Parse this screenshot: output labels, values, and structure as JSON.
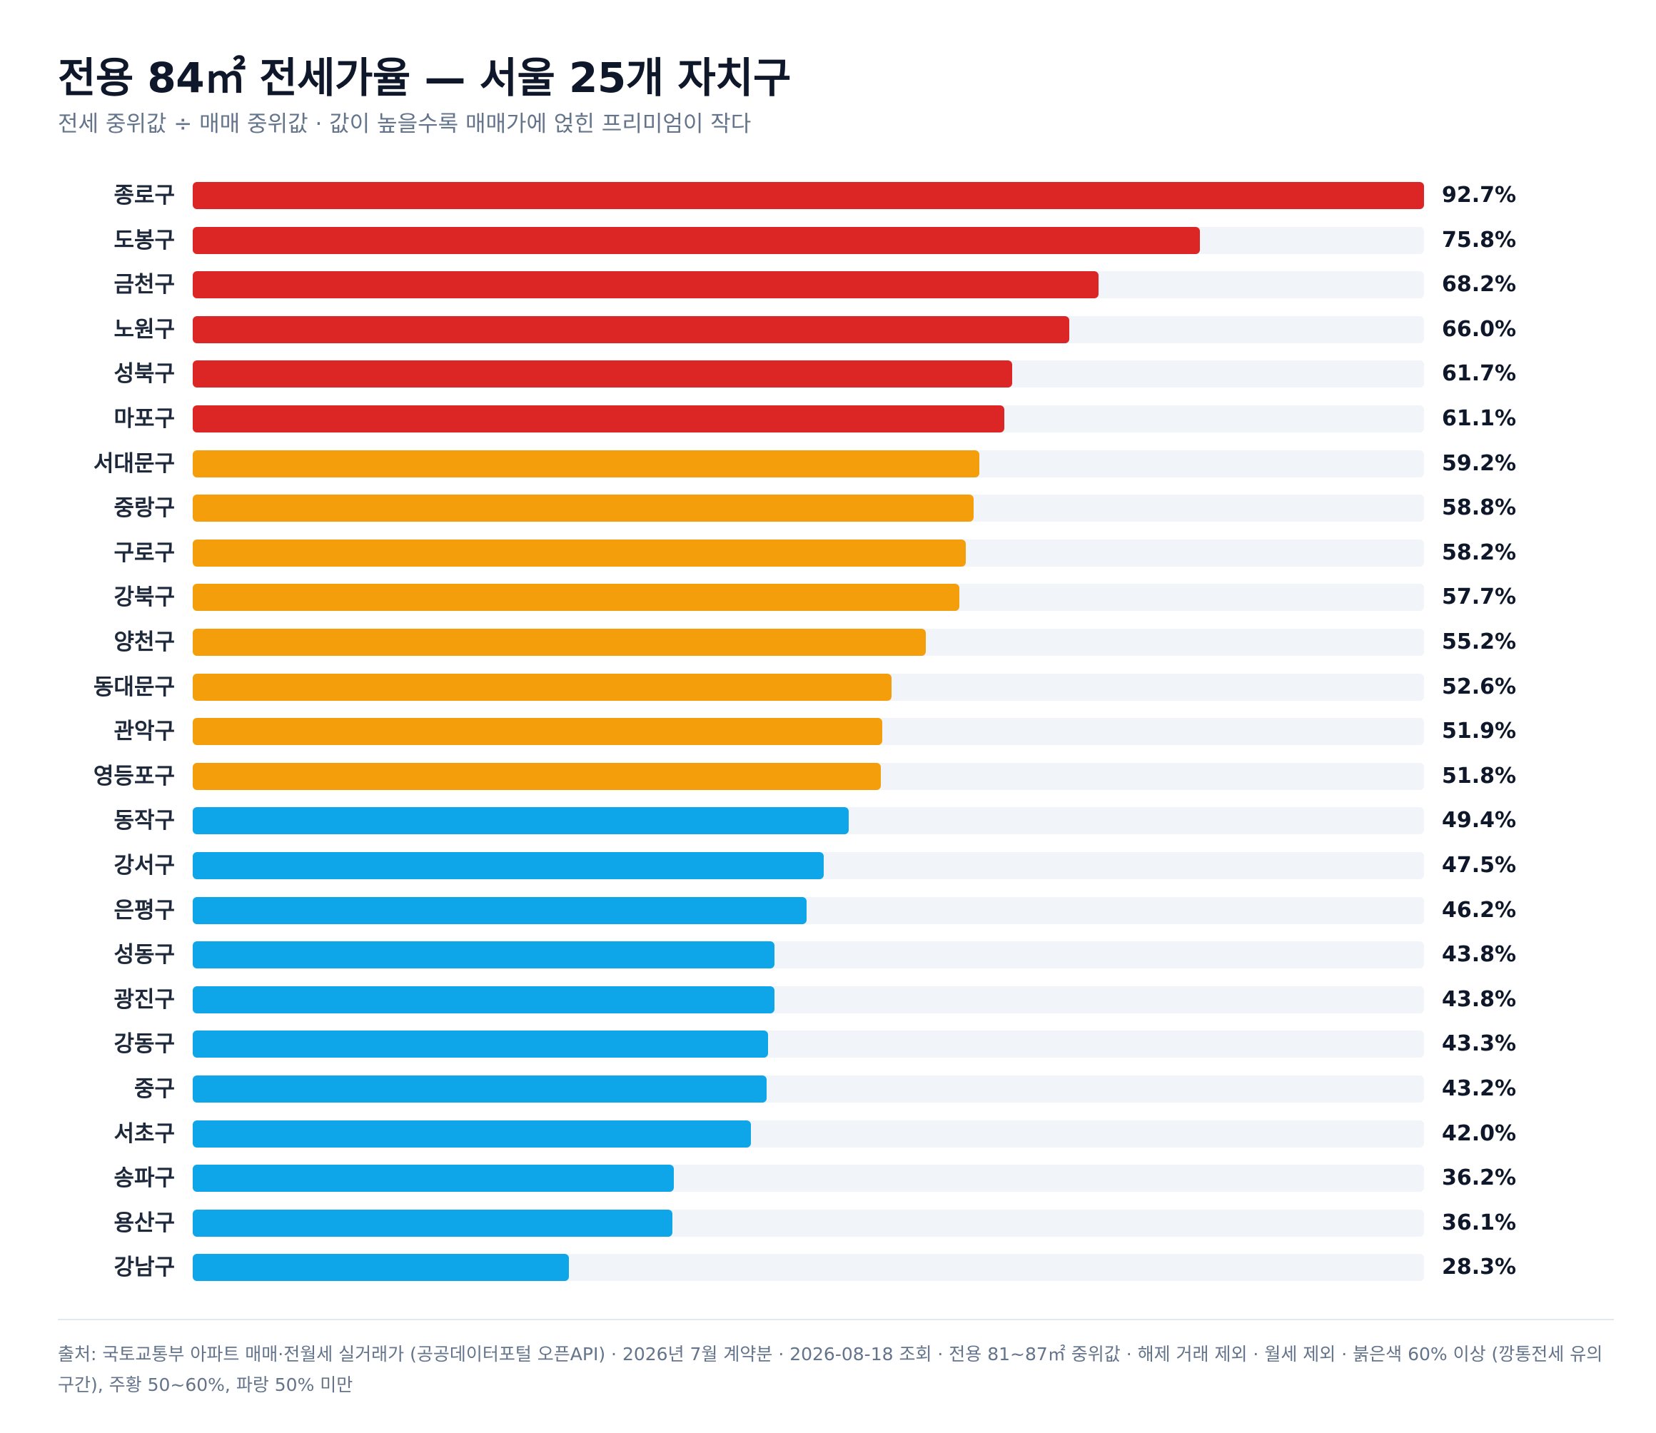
{
  "header": {
    "title": "전용 84㎡ 전세가율 — 서울 25개 자치구",
    "subtitle": "전세 중위값 ÷ 매매 중위값 · 값이 높을수록 매매가에 얹힌 프리미엄이 작다"
  },
  "footer": {
    "note": "출처: 국토교통부 아파트 매매·전월세 실거래가 (공공데이터포털 오픈API) · 2026년 7월 계약분 · 2026-08-18 조회 · 전용 81~87㎡ 중위값 · 해제 거래 제외 · 월세 제외 · 붉은색 60% 이상 (깡통전세 유의 구간), 주황 50~60%, 파랑 50% 미만"
  },
  "colors": {
    "high": "#dc2626",
    "mid": "#f59e0b",
    "low": "#0ea5e9",
    "track": "#f1f5f9"
  },
  "chart_data": {
    "type": "bar",
    "orientation": "horizontal",
    "xlim": [
      0,
      92.7
    ],
    "grid": false,
    "categories": [
      "종로구",
      "도봉구",
      "금천구",
      "노원구",
      "성북구",
      "마포구",
      "서대문구",
      "중랑구",
      "구로구",
      "강북구",
      "양천구",
      "동대문구",
      "관악구",
      "영등포구",
      "동작구",
      "강서구",
      "은평구",
      "성동구",
      "광진구",
      "강동구",
      "중구",
      "서초구",
      "송파구",
      "용산구",
      "강남구"
    ],
    "values": [
      92.7,
      75.8,
      68.2,
      66.0,
      61.7,
      61.1,
      59.2,
      58.8,
      58.2,
      57.7,
      55.2,
      52.6,
      51.9,
      51.8,
      49.4,
      47.5,
      46.2,
      43.8,
      43.8,
      43.3,
      43.2,
      42.0,
      36.2,
      36.1,
      28.3
    ],
    "value_labels": [
      "92.7%",
      "75.8%",
      "68.2%",
      "66.0%",
      "61.7%",
      "61.1%",
      "59.2%",
      "58.8%",
      "58.2%",
      "57.7%",
      "55.2%",
      "52.6%",
      "51.9%",
      "51.8%",
      "49.4%",
      "47.5%",
      "46.2%",
      "43.8%",
      "43.8%",
      "43.3%",
      "43.2%",
      "42.0%",
      "36.2%",
      "36.1%",
      "28.3%"
    ]
  }
}
